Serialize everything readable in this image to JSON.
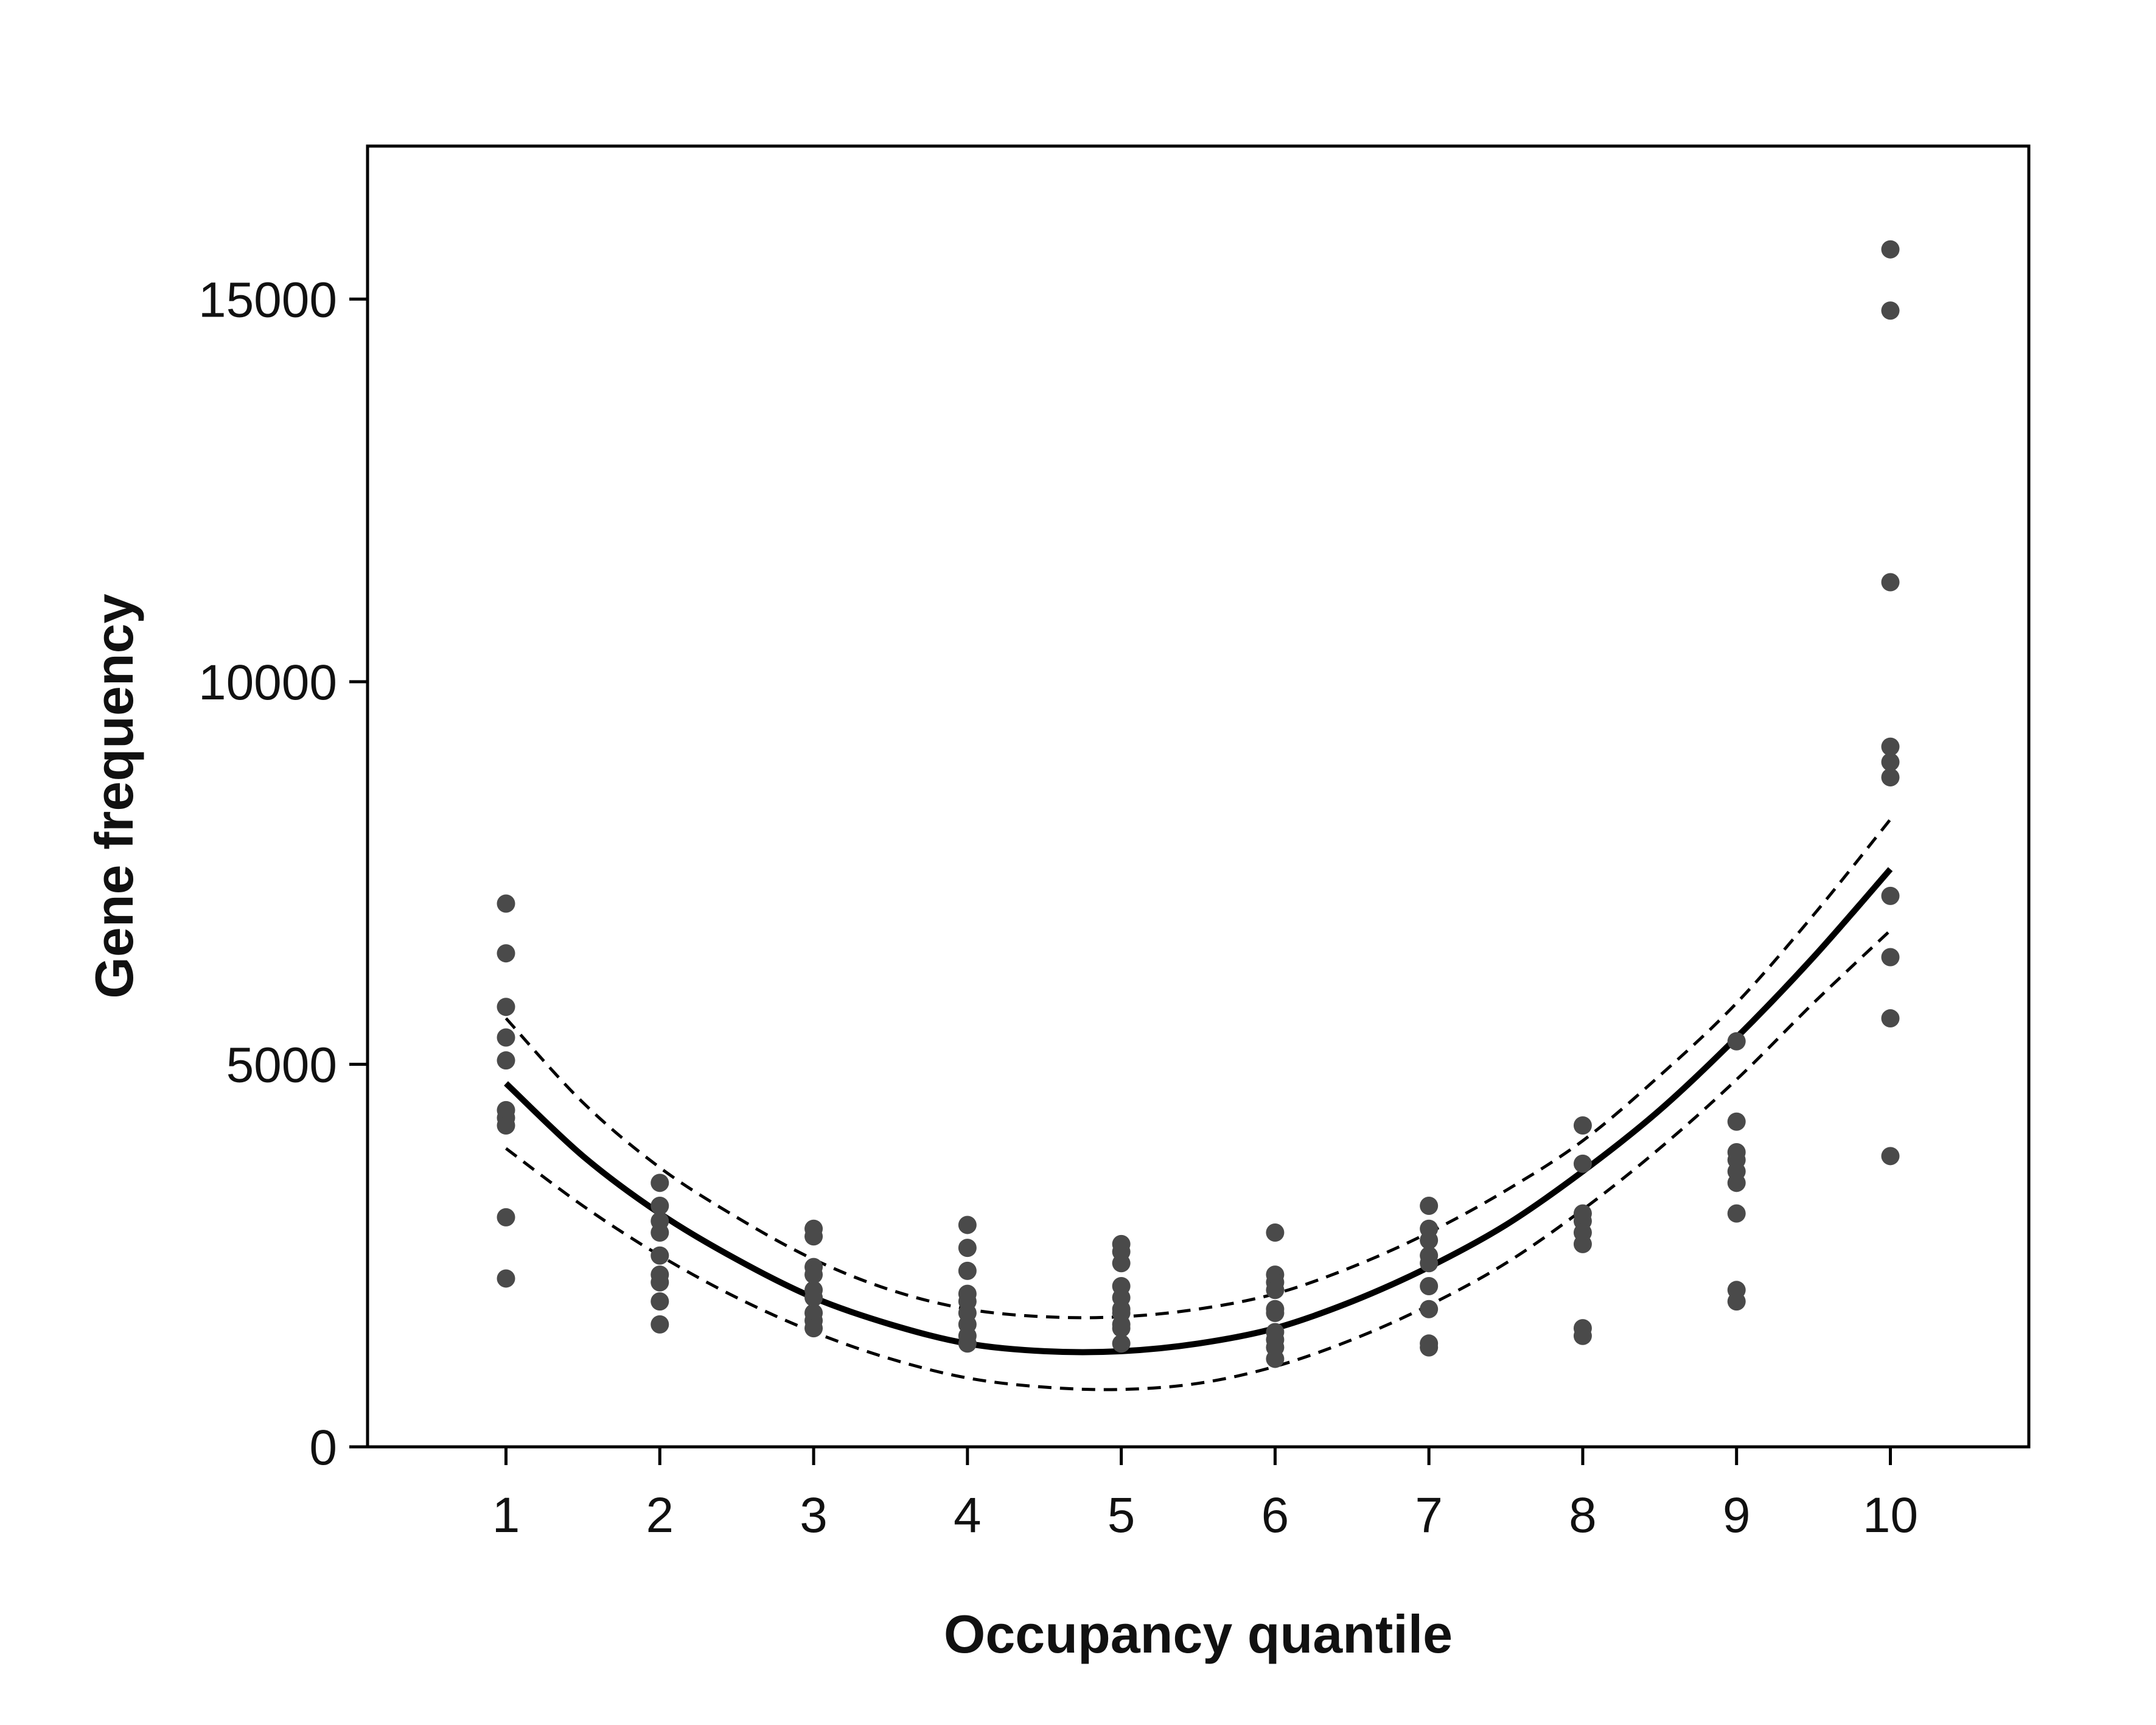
{
  "chart_data": {
    "type": "scatter",
    "title": "",
    "xlabel": "Occupancy quantile",
    "ylabel": "Gene frequency",
    "xlim": [
      0.1,
      10.9
    ],
    "ylim": [
      0,
      17000
    ],
    "x_ticks": [
      1,
      2,
      3,
      4,
      5,
      6,
      7,
      8,
      9,
      10
    ],
    "y_ticks": [
      0,
      5000,
      10000,
      15000
    ],
    "grid": false,
    "legend": "none",
    "point_color": "#4a4a4a",
    "line_color": "#000000",
    "points": [
      {
        "x": 1,
        "y": [
          7100,
          6450,
          5750,
          5350,
          5050,
          4400,
          4300,
          4200,
          3000,
          2200
        ]
      },
      {
        "x": 2,
        "y": [
          3450,
          3150,
          2950,
          2800,
          2500,
          2250,
          2150,
          1900,
          1600
        ]
      },
      {
        "x": 3,
        "y": [
          2850,
          2750,
          2350,
          2250,
          2050,
          1950,
          1750,
          1650,
          1550
        ]
      },
      {
        "x": 4,
        "y": [
          2900,
          2600,
          2300,
          2000,
          1900,
          1750,
          1600,
          1450,
          1350
        ]
      },
      {
        "x": 5,
        "y": [
          2650,
          2550,
          2400,
          2100,
          1950,
          1800,
          1750,
          1600,
          1550,
          1350
        ]
      },
      {
        "x": 6,
        "y": [
          2800,
          2250,
          2150,
          2050,
          1800,
          1750,
          1500,
          1400,
          1300,
          1150
        ]
      },
      {
        "x": 7,
        "y": [
          3150,
          2850,
          2700,
          2500,
          2400,
          2100,
          1800,
          1350,
          1300
        ]
      },
      {
        "x": 8,
        "y": [
          4200,
          3700,
          3050,
          2950,
          2800,
          2650,
          1550,
          1450
        ]
      },
      {
        "x": 9,
        "y": [
          5300,
          4250,
          3850,
          3750,
          3600,
          3450,
          3050,
          2050,
          1900
        ]
      },
      {
        "x": 10,
        "y": [
          15650,
          14850,
          11300,
          9150,
          8950,
          8750,
          7200,
          6400,
          5600,
          3800
        ]
      }
    ],
    "fit": {
      "x": [
        1,
        1.5,
        2,
        2.5,
        3,
        3.5,
        4,
        4.5,
        5,
        5.5,
        6,
        6.5,
        7,
        7.5,
        8,
        8.5,
        9,
        9.5,
        10
      ],
      "y": [
        4750,
        3800,
        3050,
        2450,
        1950,
        1600,
        1350,
        1250,
        1250,
        1350,
        1550,
        1900,
        2350,
        2900,
        3600,
        4400,
        5350,
        6400,
        7550
      ]
    },
    "upper_ci": {
      "x": [
        1,
        1.5,
        2,
        2.5,
        3,
        3.5,
        4,
        4.5,
        5,
        5.5,
        6,
        6.5,
        7,
        7.5,
        8,
        8.5,
        9,
        9.5,
        10
      ],
      "y": [
        5600,
        4500,
        3650,
        3000,
        2450,
        2050,
        1800,
        1700,
        1700,
        1800,
        2000,
        2350,
        2800,
        3350,
        4000,
        4850,
        5800,
        6950,
        8200
      ]
    },
    "lower_ci": {
      "x": [
        1,
        1.5,
        2,
        2.5,
        3,
        3.5,
        4,
        4.5,
        5,
        5.5,
        6,
        6.5,
        7,
        7.5,
        8,
        8.5,
        9,
        9.5,
        10
      ],
      "y": [
        3900,
        3150,
        2500,
        1950,
        1500,
        1150,
        900,
        780,
        750,
        830,
        1050,
        1400,
        1850,
        2400,
        3100,
        3900,
        4800,
        5800,
        6750
      ]
    }
  }
}
